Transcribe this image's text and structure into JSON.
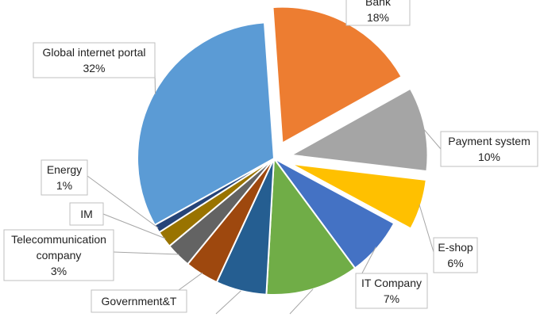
{
  "chart_data": {
    "type": "pie",
    "slices": [
      {
        "label": "Bank",
        "percent_label": "18%",
        "value": 18,
        "color": "#ED7D31",
        "exploded": true
      },
      {
        "label": "Payment system",
        "percent_label": "10%",
        "value": 10,
        "color": "#A5A5A5",
        "exploded": true
      },
      {
        "label": "E-shop",
        "percent_label": "6%",
        "value": 6,
        "color": "#FFC000",
        "exploded": true
      },
      {
        "label": "IT Company",
        "percent_label": "7%",
        "value": 7,
        "color": "#4472C4",
        "exploded": false
      },
      {
        "label": "",
        "percent_label": "",
        "value": 11,
        "color": "#70AD47",
        "exploded": false
      },
      {
        "label": "",
        "percent_label": "",
        "value": 6,
        "color": "#255E91",
        "exploded": false
      },
      {
        "label": "Government&T",
        "percent_label": "",
        "value": 4,
        "color": "#9E480E",
        "exploded": false
      },
      {
        "label": "Telecommunication company",
        "percent_label": "3%",
        "value": 3,
        "color": "#636363",
        "exploded": false
      },
      {
        "label": "IM",
        "percent_label": "",
        "value": 2,
        "color": "#997300",
        "exploded": false
      },
      {
        "label": "Energy",
        "percent_label": "1%",
        "value": 1,
        "color": "#264478",
        "exploded": false
      },
      {
        "label": "Global internet portal",
        "percent_label": "32%",
        "value": 32,
        "color": "#5B9BD5",
        "exploded": false
      }
    ]
  }
}
